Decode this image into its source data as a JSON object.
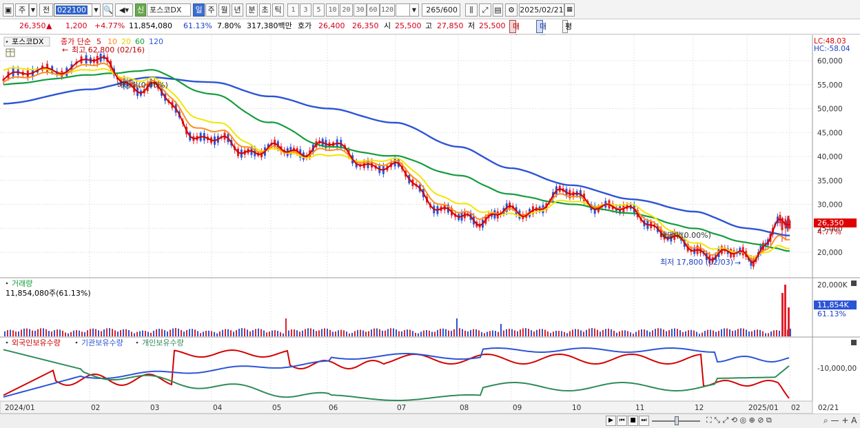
{
  "toolbar": {
    "period_label": "주",
    "prev_label": "전",
    "code": "022100",
    "credit_badge": "신",
    "stock_name": "포스코DX",
    "periods": [
      "일",
      "주",
      "월",
      "년",
      "분",
      "초",
      "틱"
    ],
    "minutes": [
      "1",
      "3",
      "5",
      "10",
      "20",
      "30",
      "60",
      "120"
    ],
    "count": "265",
    "count_total": "/600",
    "date": "2025/02/21"
  },
  "info": {
    "price": "26,350",
    "change_arrow": "▲",
    "change": "1,200",
    "change_pct": "+4.77%",
    "volume": "11,854,080",
    "vol_ratio": "61.13%",
    "turnover": "7.80%",
    "amount": "317,380백만",
    "quote_label": "호가",
    "ask": "26,400",
    "bid": "26,350",
    "open_label": "시",
    "open": "25,500",
    "high_label": "고",
    "high": "27,850",
    "low_label": "저",
    "low": "25,500",
    "buy_label": "매수",
    "sell_label": "매도",
    "eval_label": "평"
  },
  "price_panel": {
    "title": "포스코DX",
    "ma_label": "종가 단순",
    "ma_periods": [
      "5",
      "10",
      "20",
      "60",
      "120"
    ],
    "ma_colors": [
      "#d40000",
      "#ff8c1a",
      "#f2e600",
      "#139c3c",
      "#2b54d6"
    ],
    "max_marker": "최고 62,800 (02/16)",
    "min_marker": "최저 17,800 (02/03)",
    "dividend_1": "배당락(0.00%)",
    "dividend_2": "배당락(0.00%)",
    "lc": "LC:48.03",
    "hc": "HC:-58.04",
    "current_price_tag": "26,350",
    "current_pct_tag": "4.77%",
    "y_ticks": [
      "60,000",
      "55,000",
      "50,000",
      "45,000",
      "40,000",
      "35,000",
      "30,000",
      "25,000",
      "20,000"
    ]
  },
  "volume_panel": {
    "title": "거래량",
    "value": "11,854,080주(61.13%)",
    "y_tick": "20,000K",
    "current_tag": "11,854K",
    "current_pct": "61.13%"
  },
  "holding_panel": {
    "legend": [
      "외국인보유수량",
      "기관보유수량",
      "개인보유수량"
    ],
    "legend_colors": [
      "#d40000",
      "#2b54d6",
      "#2e8b57"
    ],
    "y_tick": "-10,000,00"
  },
  "x_axis": {
    "labels": [
      "2024/01",
      "02",
      "03",
      "04",
      "05",
      "06",
      "07",
      "08",
      "09",
      "10",
      "11",
      "12",
      "2025/01",
      "02"
    ],
    "right_label": "02/21"
  },
  "chart_data": {
    "type": "line",
    "title": "포스코DX",
    "ylim": [
      17000,
      63000
    ],
    "x": [
      "2024/01",
      "02",
      "03",
      "04",
      "05",
      "06",
      "07",
      "08",
      "09",
      "10",
      "11",
      "12",
      "2025/01",
      "02"
    ],
    "series": [
      {
        "name": "5",
        "values": [
          56000,
          60000,
          54000,
          43000,
          41000,
          42000,
          37000,
          27000,
          28000,
          32000,
          28000,
          20500,
          19000,
          26350
        ]
      },
      {
        "name": "10",
        "values": [
          55500,
          59000,
          55000,
          45000,
          41000,
          41000,
          38000,
          28000,
          28000,
          31500,
          28500,
          21000,
          19200,
          23000
        ]
      },
      {
        "name": "20",
        "values": [
          58000,
          58000,
          56000,
          47000,
          41000,
          40000,
          39000,
          30000,
          27500,
          30500,
          29500,
          22000,
          19500,
          21000
        ]
      },
      {
        "name": "60",
        "values": [
          55000,
          57000,
          58000,
          53000,
          47000,
          42000,
          40000,
          36000,
          32000,
          30000,
          28000,
          25000,
          22000,
          20300
        ]
      },
      {
        "name": "120",
        "values": [
          51000,
          54000,
          56500,
          55500,
          52500,
          50000,
          47000,
          42000,
          37500,
          34000,
          31000,
          28500,
          25000,
          23500
        ]
      }
    ]
  }
}
